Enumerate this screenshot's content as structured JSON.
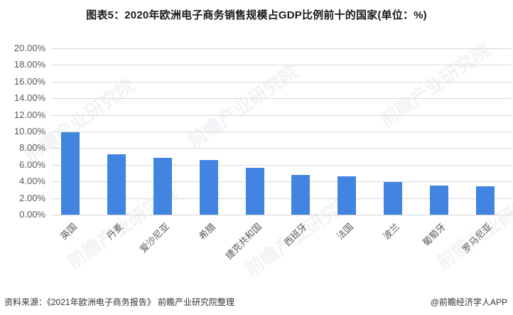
{
  "title": "图表5：2020年欧洲电子商务销售规模占GDP比例前十的国家(单位：%)",
  "chart_data": {
    "type": "bar",
    "title": "图表5：2020年欧洲电子商务销售规模占GDP比例前十的国家(单位：%)",
    "xlabel": "",
    "ylabel": "",
    "categories": [
      "英国",
      "丹麦",
      "爱沙尼亚",
      "希腊",
      "捷克共和国",
      "西班牙",
      "法国",
      "波兰",
      "葡萄牙",
      "罗马尼亚"
    ],
    "values": [
      9.9,
      7.3,
      6.8,
      6.6,
      5.6,
      4.8,
      4.6,
      3.9,
      3.5,
      3.4
    ],
    "unit": "%",
    "ylim": [
      0,
      20
    ],
    "yticks": [
      "0.00%",
      "2.00%",
      "4.00%",
      "6.00%",
      "8.00%",
      "10.00%",
      "12.00%",
      "14.00%",
      "16.00%",
      "18.00%",
      "20.00%"
    ],
    "grid": true,
    "legend": null,
    "bar_color": "#4285e1"
  },
  "footer": {
    "source": "资料来源：《2021年欧洲电子商务报告》 前瞻产业研究院整理",
    "credit": "@前瞻经济学人APP"
  },
  "watermark": "前瞻产业研究院"
}
